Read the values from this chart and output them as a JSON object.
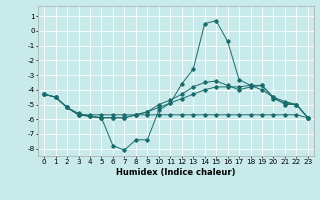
{
  "title": "",
  "xlabel": "Humidex (Indice chaleur)",
  "background_color": "#c8eaea",
  "grid_color": "#ffffff",
  "line_color": "#1a6b6b",
  "xlim": [
    -0.5,
    23.5
  ],
  "ylim": [
    -8.5,
    1.7
  ],
  "xticks": [
    0,
    1,
    2,
    3,
    4,
    5,
    6,
    7,
    8,
    9,
    10,
    11,
    12,
    13,
    14,
    15,
    16,
    17,
    18,
    19,
    20,
    21,
    22,
    23
  ],
  "yticks": [
    1,
    0,
    -1,
    -2,
    -3,
    -4,
    -5,
    -6,
    -7,
    -8
  ],
  "line1_x": [
    0,
    1,
    2,
    3,
    4,
    5,
    6,
    7,
    8,
    9,
    10,
    11,
    12,
    13,
    14,
    15,
    16,
    17,
    18,
    19,
    20,
    21,
    22,
    23
  ],
  "line1_y": [
    -4.3,
    -4.5,
    -5.2,
    -5.7,
    -5.7,
    -5.7,
    -5.7,
    -5.7,
    -5.7,
    -5.7,
    -5.7,
    -5.7,
    -5.7,
    -5.7,
    -5.7,
    -5.7,
    -5.7,
    -5.7,
    -5.7,
    -5.7,
    -5.7,
    -5.7,
    -5.7,
    -5.9
  ],
  "line2_x": [
    0,
    1,
    2,
    3,
    4,
    5,
    6,
    7,
    8,
    9,
    10,
    11,
    12,
    13,
    14,
    15,
    16,
    17,
    18,
    19,
    20,
    21,
    22,
    23
  ],
  "line2_y": [
    -4.3,
    -4.5,
    -5.2,
    -5.7,
    -5.8,
    -5.9,
    -7.8,
    -8.1,
    -7.4,
    -7.4,
    -5.4,
    -4.9,
    -3.6,
    -2.6,
    0.5,
    0.7,
    -0.7,
    -3.3,
    -3.7,
    -4.0,
    -4.5,
    -4.8,
    -5.0,
    -5.9
  ],
  "line3_x": [
    0,
    1,
    2,
    3,
    4,
    5,
    6,
    7,
    8,
    9,
    10,
    11,
    12,
    13,
    14,
    15,
    16,
    17,
    18,
    19,
    20,
    21,
    22,
    23
  ],
  "line3_y": [
    -4.3,
    -4.5,
    -5.2,
    -5.7,
    -5.8,
    -5.9,
    -5.9,
    -5.9,
    -5.7,
    -5.5,
    -5.2,
    -4.9,
    -4.6,
    -4.3,
    -4.0,
    -3.8,
    -3.8,
    -3.8,
    -3.7,
    -3.7,
    -4.5,
    -5.0,
    -5.0,
    -5.9
  ],
  "line4_x": [
    0,
    1,
    2,
    3,
    4,
    5,
    6,
    7,
    8,
    9,
    10,
    11,
    12,
    13,
    14,
    15,
    16,
    17,
    18,
    19,
    20,
    21,
    22,
    23
  ],
  "line4_y": [
    -4.3,
    -4.5,
    -5.2,
    -5.6,
    -5.8,
    -5.9,
    -5.9,
    -5.9,
    -5.7,
    -5.5,
    -5.0,
    -4.7,
    -4.3,
    -3.8,
    -3.5,
    -3.4,
    -3.7,
    -4.0,
    -3.8,
    -3.7,
    -4.6,
    -4.9,
    -5.0,
    -5.9
  ],
  "xlabel_fontsize": 6.0,
  "tick_fontsize": 5.2,
  "lw": 0.7,
  "ms": 1.8
}
